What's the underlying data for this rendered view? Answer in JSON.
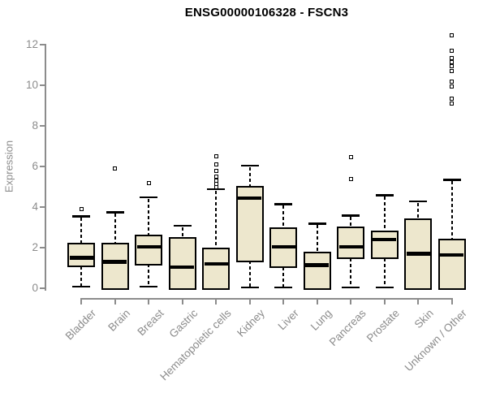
{
  "chart_data": {
    "type": "boxplot",
    "title": "ENSG00000106328 - FSCN3",
    "ylabel": "Expression",
    "xlabel": "",
    "ylim": [
      0,
      12
    ],
    "yticks": [
      0,
      2,
      4,
      6,
      8,
      10,
      12
    ],
    "grid": false,
    "legend": null,
    "categories": [
      "Bladder",
      "Brain",
      "Breast",
      "Gastric",
      "Hematopoietic cells",
      "Kidney",
      "Liver",
      "Lung",
      "Pancreas",
      "Prostate",
      "Skin",
      "Unknown / Other"
    ],
    "series": [
      {
        "name": "Bladder",
        "whisker_low": 0.1,
        "q1": 1.1,
        "median": 1.5,
        "q3": 2.2,
        "whisker_high": 3.55,
        "outliers": [
          3.9
        ]
      },
      {
        "name": "Brain",
        "whisker_low": 0.0,
        "q1": 0.0,
        "median": 1.3,
        "q3": 2.2,
        "whisker_high": 3.75,
        "outliers": [
          5.9
        ]
      },
      {
        "name": "Breast",
        "whisker_low": 0.1,
        "q1": 1.2,
        "median": 2.05,
        "q3": 2.6,
        "whisker_high": 4.5,
        "outliers": [
          5.2
        ]
      },
      {
        "name": "Gastric",
        "whisker_low": 0.0,
        "q1": 0.0,
        "median": 1.05,
        "q3": 2.5,
        "whisker_high": 3.1,
        "outliers": []
      },
      {
        "name": "Hematopoietic cells",
        "whisker_low": 0.0,
        "q1": 0.0,
        "median": 1.2,
        "q3": 1.95,
        "whisker_high": 4.9,
        "outliers": [
          6.5,
          6.1,
          5.8,
          5.5,
          5.3,
          5.15,
          5.0
        ]
      },
      {
        "name": "Kidney",
        "whisker_low": 0.05,
        "q1": 1.35,
        "median": 4.45,
        "q3": 5.0,
        "whisker_high": 6.05,
        "outliers": []
      },
      {
        "name": "Liver",
        "whisker_low": 0.05,
        "q1": 1.05,
        "median": 2.05,
        "q3": 2.95,
        "whisker_high": 4.15,
        "outliers": []
      },
      {
        "name": "Lung",
        "whisker_low": 0.0,
        "q1": 0.0,
        "median": 1.15,
        "q3": 1.75,
        "whisker_high": 3.2,
        "outliers": []
      },
      {
        "name": "Pancreas",
        "whisker_low": 0.05,
        "q1": 1.5,
        "median": 2.05,
        "q3": 3.0,
        "whisker_high": 3.6,
        "outliers": [
          6.45,
          5.4
        ]
      },
      {
        "name": "Prostate",
        "whisker_low": 0.05,
        "q1": 1.5,
        "median": 2.4,
        "q3": 2.8,
        "whisker_high": 4.6,
        "outliers": []
      },
      {
        "name": "Skin",
        "whisker_low": 0.0,
        "q1": 0.0,
        "median": 1.7,
        "q3": 3.4,
        "whisker_high": 4.3,
        "outliers": []
      },
      {
        "name": "Unknown / Other",
        "whisker_low": 0.0,
        "q1": 0.0,
        "median": 1.65,
        "q3": 2.4,
        "whisker_high": 5.35,
        "outliers": [
          12.45,
          11.7,
          11.35,
          11.15,
          10.95,
          10.7,
          10.2,
          9.95,
          9.35,
          9.1
        ]
      }
    ],
    "colors": {
      "box_fill": "#EDE7CD",
      "box_border": "#000000",
      "median": "#000000",
      "axis": "#8C8C8C",
      "tick_label": "#8C8C8C",
      "title": "#000000",
      "background": "#FFFFFF"
    }
  }
}
